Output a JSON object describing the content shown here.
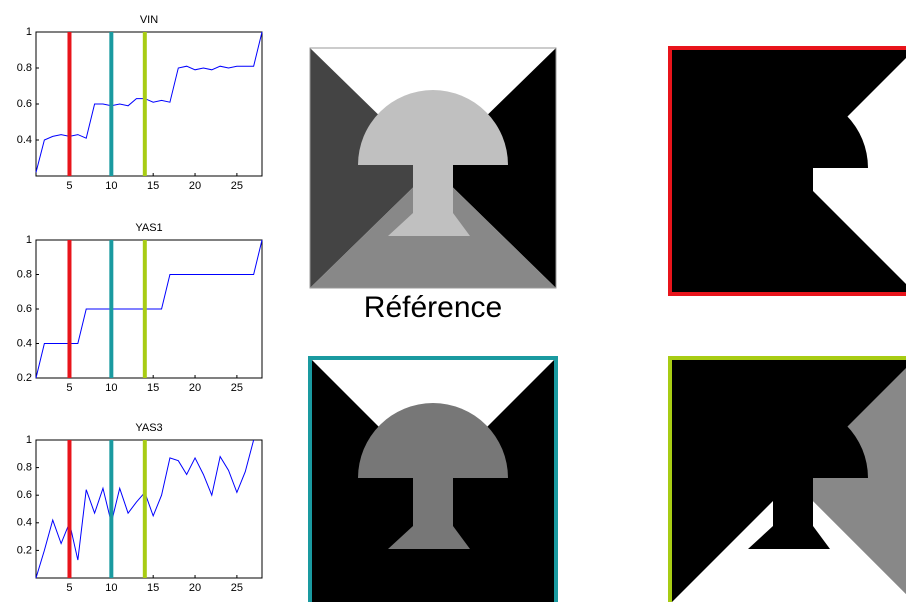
{
  "chart_data": [
    {
      "type": "line",
      "title": "VIN",
      "x": [
        1,
        2,
        3,
        4,
        5,
        6,
        7,
        8,
        9,
        10,
        11,
        12,
        13,
        14,
        15,
        16,
        17,
        18,
        19,
        20,
        21,
        22,
        23,
        24,
        25,
        26,
        27,
        28
      ],
      "series": [
        {
          "color": "#0000ff",
          "values": [
            0.22,
            0.4,
            0.42,
            0.43,
            0.42,
            0.43,
            0.41,
            0.6,
            0.6,
            0.59,
            0.6,
            0.59,
            0.63,
            0.63,
            0.61,
            0.62,
            0.61,
            0.8,
            0.81,
            0.79,
            0.8,
            0.79,
            0.81,
            0.8,
            0.81,
            0.81,
            0.81,
            1
          ]
        }
      ],
      "xlim": [
        1,
        28
      ],
      "ylim": [
        0.2,
        1
      ],
      "xticks": [
        5,
        10,
        15,
        20,
        25
      ],
      "yticks": [
        0.4,
        0.6,
        0.8,
        1
      ],
      "markers": {
        "x": [
          5,
          10,
          14
        ],
        "colors": [
          "#e8141b",
          "#1a9aa0",
          "#a8cc14"
        ]
      }
    },
    {
      "type": "line",
      "title": "YAS1",
      "x": [
        1,
        2,
        3,
        4,
        5,
        6,
        7,
        8,
        9,
        10,
        11,
        12,
        13,
        14,
        15,
        16,
        17,
        18,
        19,
        20,
        21,
        22,
        23,
        24,
        25,
        26,
        27,
        28
      ],
      "series": [
        {
          "color": "#0000ff",
          "values": [
            0.2,
            0.4,
            0.4,
            0.4,
            0.4,
            0.4,
            0.6,
            0.6,
            0.6,
            0.6,
            0.6,
            0.6,
            0.6,
            0.6,
            0.6,
            0.6,
            0.8,
            0.8,
            0.8,
            0.8,
            0.8,
            0.8,
            0.8,
            0.8,
            0.8,
            0.8,
            0.8,
            1
          ]
        }
      ],
      "xlim": [
        1,
        28
      ],
      "ylim": [
        0.2,
        1
      ],
      "xticks": [
        5,
        10,
        15,
        20,
        25
      ],
      "yticks": [
        0.2,
        0.4,
        0.6,
        0.8,
        1
      ],
      "markers": {
        "x": [
          5,
          10,
          14
        ],
        "colors": [
          "#e8141b",
          "#1a9aa0",
          "#a8cc14"
        ]
      }
    },
    {
      "type": "line",
      "title": "YAS3",
      "x": [
        1,
        2,
        3,
        4,
        5,
        6,
        7,
        8,
        9,
        10,
        11,
        12,
        13,
        14,
        15,
        16,
        17,
        18,
        19,
        20,
        21,
        22,
        23,
        24,
        25,
        26,
        27
      ],
      "series": [
        {
          "color": "#0000ff",
          "values": [
            0,
            0.2,
            0.42,
            0.25,
            0.4,
            0.13,
            0.64,
            0.47,
            0.65,
            0.4,
            0.65,
            0.47,
            0.55,
            0.62,
            0.45,
            0.6,
            0.87,
            0.85,
            0.75,
            0.87,
            0.75,
            0.6,
            0.88,
            0.78,
            0.62,
            0.77,
            1
          ]
        }
      ],
      "xlim": [
        1,
        28
      ],
      "ylim": [
        0,
        1
      ],
      "xticks": [
        5,
        10,
        15,
        20,
        25
      ],
      "yticks": [
        0.2,
        0.4,
        0.6,
        0.8,
        1
      ],
      "markers": {
        "x": [
          5,
          10,
          14
        ],
        "colors": [
          "#e8141b",
          "#1a9aa0",
          "#a8cc14"
        ]
      }
    }
  ],
  "images": {
    "reference_label": "Référence"
  }
}
